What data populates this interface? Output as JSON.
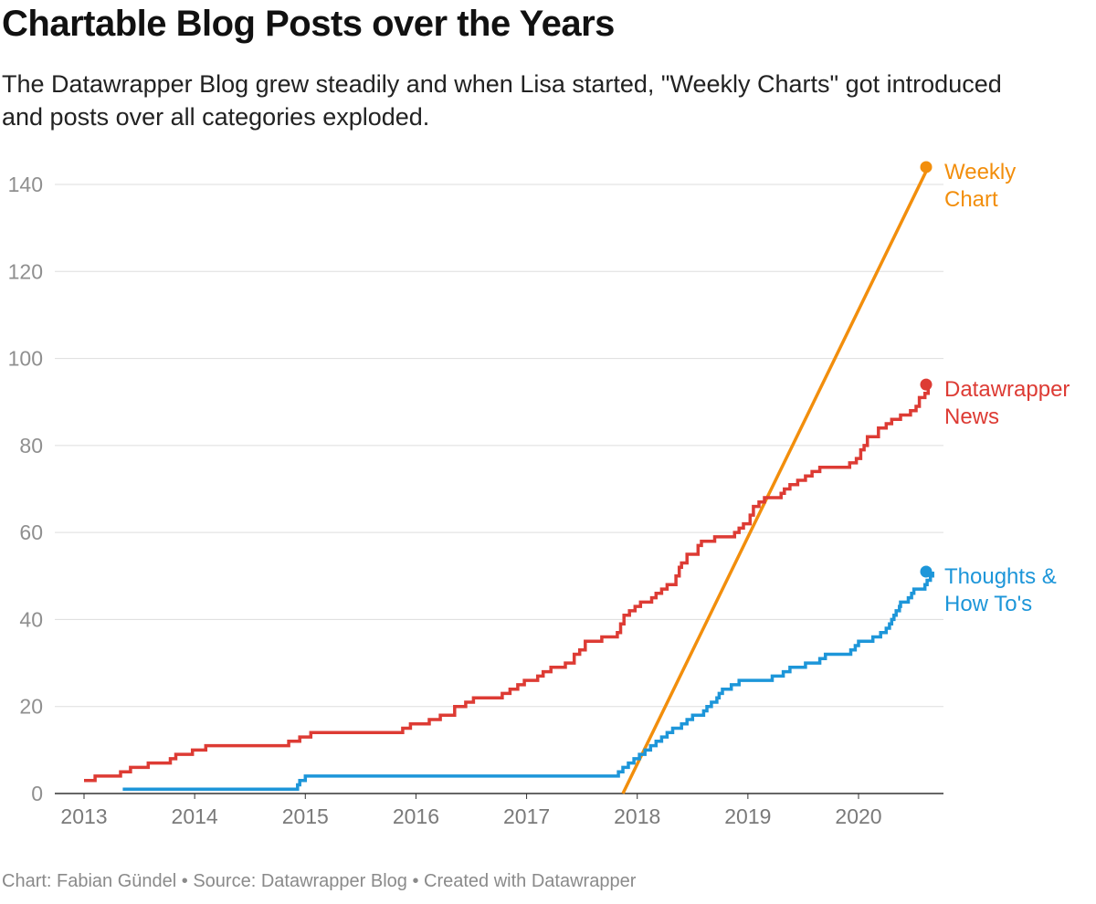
{
  "header": {
    "title": "Chartable Blog Posts over the Years",
    "subtitle": "The Datawrapper Blog grew steadily and when Lisa started, \"Weekly Charts\" got introduced and posts over all categories exploded."
  },
  "footer": {
    "text": "Chart: Fabian Gündel • Source: Datawrapper Blog • Created with Datawrapper"
  },
  "chart_data": {
    "type": "line",
    "title": "Chartable Blog Posts over the Years",
    "xlabel": "",
    "ylabel": "",
    "xlim": [
      2012.9,
      2020.75
    ],
    "ylim": [
      0,
      140
    ],
    "y_ticks": [
      0,
      20,
      40,
      60,
      80,
      100,
      120,
      140
    ],
    "x_ticks": [
      2013,
      2014,
      2015,
      2016,
      2017,
      2018,
      2019,
      2020
    ],
    "grid": true,
    "legend": "direct labels at line ends (right)",
    "series": [
      {
        "name": "Weekly Chart",
        "label_lines": [
          "Weekly",
          "Chart"
        ],
        "color": "#f28e0c",
        "step": false,
        "points": [
          [
            2017.87,
            0
          ],
          [
            2020.63,
            144
          ]
        ]
      },
      {
        "name": "Datawrapper News",
        "label_lines": [
          "Datawrapper",
          "News"
        ],
        "color": "#dd3b34",
        "step": true,
        "points": [
          [
            2013.0,
            3
          ],
          [
            2013.1,
            4
          ],
          [
            2013.33,
            5
          ],
          [
            2013.42,
            6
          ],
          [
            2013.58,
            7
          ],
          [
            2013.78,
            8
          ],
          [
            2013.83,
            9
          ],
          [
            2013.98,
            10
          ],
          [
            2014.1,
            11
          ],
          [
            2014.85,
            12
          ],
          [
            2014.95,
            13
          ],
          [
            2015.05,
            14
          ],
          [
            2015.88,
            15
          ],
          [
            2015.95,
            16
          ],
          [
            2016.12,
            17
          ],
          [
            2016.22,
            18
          ],
          [
            2016.35,
            20
          ],
          [
            2016.45,
            21
          ],
          [
            2016.52,
            22
          ],
          [
            2016.78,
            23
          ],
          [
            2016.85,
            24
          ],
          [
            2016.92,
            25
          ],
          [
            2016.98,
            26
          ],
          [
            2017.1,
            27
          ],
          [
            2017.15,
            28
          ],
          [
            2017.22,
            29
          ],
          [
            2017.35,
            30
          ],
          [
            2017.43,
            32
          ],
          [
            2017.48,
            33
          ],
          [
            2017.53,
            35
          ],
          [
            2017.68,
            36
          ],
          [
            2017.82,
            37
          ],
          [
            2017.85,
            39
          ],
          [
            2017.88,
            41
          ],
          [
            2017.93,
            42
          ],
          [
            2017.98,
            43
          ],
          [
            2018.03,
            44
          ],
          [
            2018.13,
            45
          ],
          [
            2018.17,
            46
          ],
          [
            2018.22,
            47
          ],
          [
            2018.27,
            48
          ],
          [
            2018.35,
            50
          ],
          [
            2018.38,
            52
          ],
          [
            2018.4,
            53
          ],
          [
            2018.45,
            55
          ],
          [
            2018.55,
            57
          ],
          [
            2018.58,
            58
          ],
          [
            2018.7,
            59
          ],
          [
            2018.88,
            60
          ],
          [
            2018.92,
            61
          ],
          [
            2018.96,
            62
          ],
          [
            2019.02,
            64
          ],
          [
            2019.05,
            66
          ],
          [
            2019.1,
            67
          ],
          [
            2019.15,
            68
          ],
          [
            2019.3,
            69
          ],
          [
            2019.33,
            70
          ],
          [
            2019.38,
            71
          ],
          [
            2019.45,
            72
          ],
          [
            2019.52,
            73
          ],
          [
            2019.58,
            74
          ],
          [
            2019.65,
            75
          ],
          [
            2019.92,
            76
          ],
          [
            2019.98,
            77
          ],
          [
            2020.02,
            79
          ],
          [
            2020.05,
            80
          ],
          [
            2020.08,
            82
          ],
          [
            2020.18,
            84
          ],
          [
            2020.25,
            85
          ],
          [
            2020.3,
            86
          ],
          [
            2020.38,
            87
          ],
          [
            2020.47,
            88
          ],
          [
            2020.52,
            89
          ],
          [
            2020.55,
            91
          ],
          [
            2020.6,
            92
          ],
          [
            2020.63,
            94
          ]
        ]
      },
      {
        "name": "Thoughts & How To's",
        "label_lines": [
          "Thoughts &",
          "How To's"
        ],
        "color": "#1d96d9",
        "step": true,
        "points": [
          [
            2013.35,
            1
          ],
          [
            2014.93,
            2
          ],
          [
            2014.95,
            3
          ],
          [
            2015.0,
            4
          ],
          [
            2017.83,
            5
          ],
          [
            2017.87,
            6
          ],
          [
            2017.92,
            7
          ],
          [
            2017.97,
            8
          ],
          [
            2018.02,
            9
          ],
          [
            2018.07,
            10
          ],
          [
            2018.12,
            11
          ],
          [
            2018.17,
            12
          ],
          [
            2018.22,
            13
          ],
          [
            2018.27,
            14
          ],
          [
            2018.32,
            15
          ],
          [
            2018.4,
            16
          ],
          [
            2018.45,
            17
          ],
          [
            2018.5,
            18
          ],
          [
            2018.6,
            19
          ],
          [
            2018.63,
            20
          ],
          [
            2018.67,
            21
          ],
          [
            2018.72,
            22
          ],
          [
            2018.74,
            23
          ],
          [
            2018.77,
            24
          ],
          [
            2018.85,
            25
          ],
          [
            2018.92,
            26
          ],
          [
            2019.22,
            27
          ],
          [
            2019.32,
            28
          ],
          [
            2019.38,
            29
          ],
          [
            2019.52,
            30
          ],
          [
            2019.65,
            31
          ],
          [
            2019.7,
            32
          ],
          [
            2019.93,
            33
          ],
          [
            2019.97,
            34
          ],
          [
            2020.0,
            35
          ],
          [
            2020.13,
            36
          ],
          [
            2020.2,
            37
          ],
          [
            2020.25,
            38
          ],
          [
            2020.28,
            39
          ],
          [
            2020.3,
            40
          ],
          [
            2020.32,
            41
          ],
          [
            2020.34,
            42
          ],
          [
            2020.37,
            43
          ],
          [
            2020.38,
            44
          ],
          [
            2020.45,
            45
          ],
          [
            2020.48,
            46
          ],
          [
            2020.5,
            47
          ],
          [
            2020.6,
            48
          ],
          [
            2020.62,
            49
          ],
          [
            2020.65,
            50
          ],
          [
            2020.67,
            51
          ]
        ]
      }
    ]
  }
}
